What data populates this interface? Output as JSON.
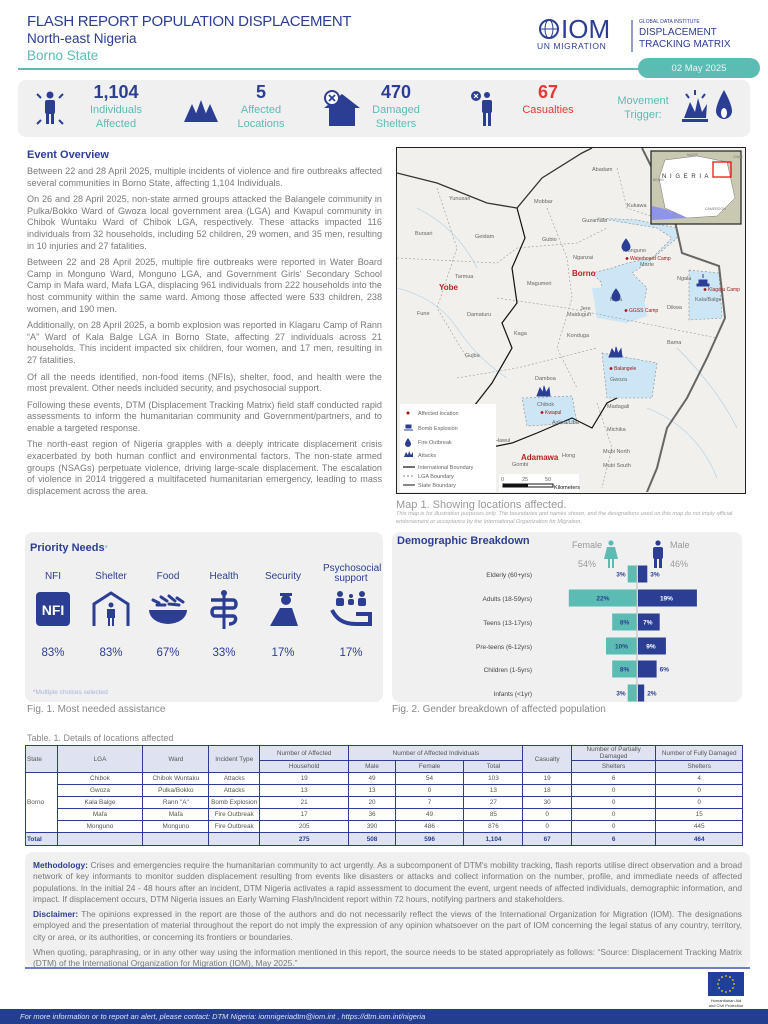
{
  "header": {
    "title": "FLASH REPORT POPULATION DISPLACEMENT",
    "region": "North-east Nigeria",
    "state": "Borno State",
    "date": "02 May 2025",
    "logo": {
      "iom": "IOM",
      "un_migration": "UN MIGRATION",
      "gdi": "GLOBAL DATA INSTITUTE",
      "dtm1": "DISPLACEMENT",
      "dtm2": "TRACKING MATRIX"
    }
  },
  "key_figures": [
    {
      "value": "1,104",
      "label1": "Individuals",
      "label2": "Affected",
      "icon": "people-affected-icon"
    },
    {
      "value": "5",
      "label1": "Affected",
      "label2": "Locations",
      "icon": "locations-icon"
    },
    {
      "value": "470",
      "label1": "Damaged",
      "label2": "Shelters",
      "icon": "damaged-shelter-icon"
    },
    {
      "value": "67",
      "label1": "Casualties",
      "icon": "casualty-icon",
      "color": "#e53935"
    }
  ],
  "movement_trigger": {
    "label1": "Movement",
    "label2": "Trigger:",
    "icons": [
      "attack-icon",
      "fire-icon"
    ]
  },
  "overview": {
    "heading": "Event Overview",
    "paragraphs": [
      "Between 22 and 28 April 2025, multiple incidents of violence and fire outbreaks affected several communities in Borno State, affecting 1,104 Individuals.",
      "On 26 and 28 April 2025, non-state armed groups attacked the Balangele community in Pulka/Bokko Ward of Gwoza local government area (LGA) and Kwapul community in Chibok Wuntaku Ward of Chibok LGA, respectively. These attacks impacted 116 individuals from 32 households, including 52 children, 29 women, and 35 men, resulting in 10 injuries and 27 fatalities.",
      "Between 22 and 28 April 2025, multiple fire outbreaks were reported in Water Board Camp in Monguno Ward, Monguno LGA, and Government Girls' Secondary School Camp in Mafa ward, Mafa LGA, displacing 961 individuals from 222 households into the host community within the same ward. Among those affected were 533 children, 238 women, and 190 men.",
      "Additionally, on 28 April 2025, a bomb explosion was reported in Klagaru Camp of Rann “A” Ward of Kala Balge LGA in Borno State, affecting 27 individuals across 21 households. This incident impacted six children, four women, and 17 men, resulting in 27 fatalities.",
      "Of all the needs identified, non-food items (NFIs), shelter, food, and health were the most prevalent. Other needs included security, and psychosocial support.",
      "Following these events, DTM (Displacement Tracking Matrix) field staff conducted rapid assessments to inform the humanitarian community and Government/partners, and to enable a targeted response.",
      "The north-east region of Nigeria grapples with a deeply intricate displacement crisis exacerbated by both human conflict and environmental factors. The non-state armed groups (NSAGs) perpetuate violence, driving large-scale displacement. The escalation of violence in 2014 triggered a multifaceted  humanitarian emergency, leading to mass displacement across the area."
    ]
  },
  "map": {
    "caption": "Map 1. Showing locations affected.",
    "note": "This map is for illustration purposes only. The boundaries and names shown, and the designations used on this map do not imply official endorsement or acceptance by the International Organization for Migration.",
    "places": [
      "Abadam",
      "Yunusari",
      "Mobbar",
      "Kukawa",
      "Guzamala",
      "Bursari",
      "Geidam",
      "Gubio",
      "Monguno",
      "Nganzai",
      "Marte",
      "Tarmua",
      "Magumeri",
      "Ngala",
      "Kala/Balge",
      "Mafa",
      "Jere",
      "Maiduguri",
      "Dikwa",
      "Fune",
      "Damaturu",
      "Kaga",
      "Konduga",
      "Bama",
      "Gwoza",
      "Gujba",
      "Damboa",
      "Chibok",
      "Askira/Uba",
      "Madagali",
      "Michika",
      "Hawul",
      "Hong",
      "Mubi North",
      "Mubi South",
      "Gombi"
    ],
    "states": [
      "Borno",
      "Yobe",
      "Adamawa"
    ],
    "sites": [
      "Waterboard Camp",
      "Klagaru Camp",
      "GGSS Camp",
      "Balangele",
      "Kwapul"
    ],
    "inset": {
      "country": "N I G E R I A",
      "neighbors": [
        "NIGER",
        "CHAD",
        "BENIN",
        "CAMEROON"
      ]
    },
    "legend": [
      "Affected location",
      "Bomb Explosion",
      "Fire Outbreak",
      "Attacks",
      "International Boundary",
      "LGA Boundary",
      "State Boundary"
    ],
    "scale": {
      "ticks": [
        "0",
        "25",
        "50"
      ],
      "unit": "Kilometers"
    },
    "colors": {
      "affected_area": "#cde6f5",
      "site": "#a01818",
      "icon": "#2b3e93"
    }
  },
  "priority_needs": {
    "heading": "Priority Needs",
    "asterisk": "*",
    "note": "*Multiple choices selected",
    "caption": "Fig. 1. Most needed assistance",
    "items": [
      {
        "label": "NFI",
        "percent": "83%",
        "icon": "nfi-icon",
        "icon_text": "NFI"
      },
      {
        "label": "Shelter",
        "percent": "83%",
        "icon": "shelter-icon"
      },
      {
        "label": "Food",
        "percent": "67%",
        "icon": "food-icon"
      },
      {
        "label": "Health",
        "percent": "33%",
        "icon": "health-icon"
      },
      {
        "label": "Security",
        "percent": "17%",
        "icon": "security-icon"
      },
      {
        "label": "Psychosocial support",
        "percent": "17%",
        "icon": "psychosocial-icon"
      }
    ]
  },
  "demographics": {
    "heading": "Demographic Breakdown",
    "caption": "Fig. 2. Gender breakdown of affected population",
    "female": {
      "label": "Female",
      "percent": "54%",
      "color": "#5bbcb4"
    },
    "male": {
      "label": "Male",
      "percent": "46%",
      "color": "#2b3e93"
    }
  },
  "chart_data": {
    "type": "bar",
    "orientation": "horizontal-diverging",
    "categories": [
      "Elderly (60+yrs)",
      "Adults (18-59yrs)",
      "Teens (13-17yrs)",
      "Pre-teens (6-12yrs)",
      "Children (1-5yrs)",
      "Infants (<1yr)"
    ],
    "series": [
      {
        "name": "Female",
        "values": [
          3,
          22,
          8,
          10,
          8,
          3
        ]
      },
      {
        "name": "Male",
        "values": [
          3,
          19,
          7,
          9,
          6,
          2
        ]
      }
    ],
    "unit": "%",
    "grid": false
  },
  "table": {
    "caption": "Table. 1. Details of locations affected",
    "headers": {
      "state": "State",
      "lga": "LGA",
      "ward": "Ward",
      "incident": "Incident Type",
      "household1": "Number of Affected",
      "household2": "Household",
      "individuals": "Number of Affected Individuals",
      "male": "Male",
      "female": "Female",
      "total": "Total",
      "casualty": "Casualty",
      "partial1": "Number of Partially Damaged",
      "partial2": "Shelters",
      "full1": "Number of Fully Damaged",
      "full2": "Shelters"
    },
    "state": "Borno",
    "rows": [
      [
        "Chibok",
        "Chibok Wuntaku",
        "Attacks",
        "19",
        "49",
        "54",
        "103",
        "19",
        "6",
        "4"
      ],
      [
        "Gwoza",
        "Pulka/Bokko",
        "Attacks",
        "13",
        "13",
        "0",
        "13",
        "18",
        "0",
        "0"
      ],
      [
        "Kala Balge",
        "Rann  \"A\"",
        "Bomb Explosion",
        "21",
        "20",
        "7",
        "27",
        "30",
        "0",
        "0"
      ],
      [
        "Mafa",
        "Mafa",
        "Fire Outbreak",
        "17",
        "36",
        "49",
        "85",
        "0",
        "0",
        "15"
      ],
      [
        "Monguno",
        "Monguno",
        "Fire Outbreak",
        "205",
        "390",
        "486",
        "876",
        "0",
        "0",
        "445"
      ]
    ],
    "total": {
      "label": "Total",
      "values": [
        "275",
        "508",
        "596",
        "1,104",
        "67",
        "6",
        "464"
      ]
    }
  },
  "methodology": {
    "label": "Methodology:",
    "text": " Crises and emergencies require the humanitarian community to act urgently.  As a subcomponent of DTM's mobility tracking, flash reports utilise direct observation and a broad network of key informants to monitor sudden displacement resulting from events like disasters or attacks and collect information on the number, profile, and immediate needs of affected populations. In the initial 24 - 48 hours after an incident, DTM Nigeria activates a rapid assessment to document the event, urgent needs of affected individuals, demographic information, and impact. If displacement occurs, DTM Nigeria issues an Early Warning Flash/Incident report within 72 hours, notifying partners and stakeholders."
  },
  "disclaimer": {
    "label": "Disclaimer:",
    "text": " The opinions expressed in the report are those of the authors and do not necessarily reflect the views of the International Organization for Migration (IOM). The designations employed and the presentation of material throughout the report do not imply the expression of any opinion whatsoever on the part of IOM concerning the legal status of any country, territory, city or area, or its authorities, or concerning its frontiers or boundaries.",
    "citation": "When quoting, paraphrasing, or in any other way using the information mentioned in this report, the source needs to be stated appropriately as follows: “Source: Displacement Tracking Matrix (DTM) of the International Organization for Migration (IOM), May 2025.”"
  },
  "eu_logo": {
    "line1": "Humanitarian Aid",
    "line2": "and Civil Protection"
  },
  "footer": "For more information or to report an alert, please contact: DTM Nigeria: iomnigeriadtm@iom.int , https://dtm.iom.int/nigeria",
  "colors": {
    "primary": "#2b3e93",
    "accent": "#5bbcb4",
    "alert": "#e53935",
    "panel": "#f0f0f0"
  }
}
